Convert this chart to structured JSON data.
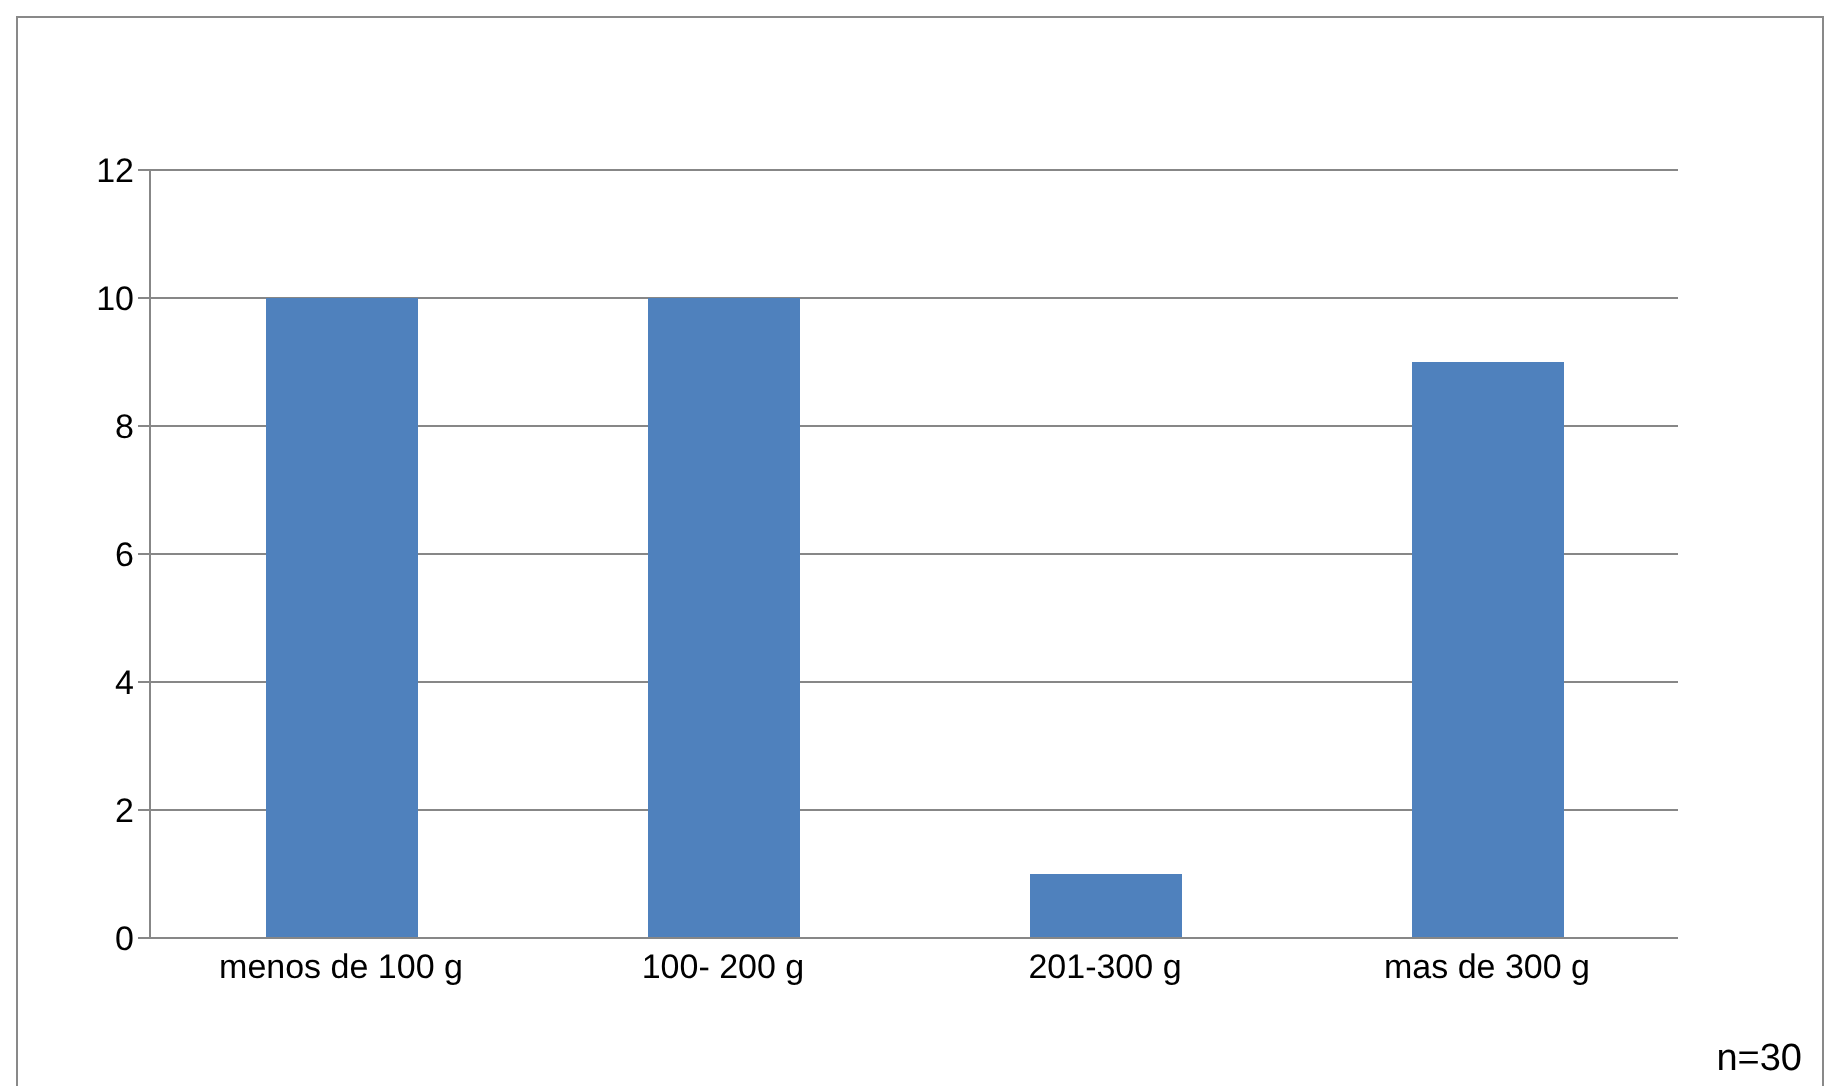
{
  "chart_data": {
    "type": "bar",
    "categories": [
      "menos de 100 g",
      "100- 200 g",
      "201-300 g",
      "mas de 300 g"
    ],
    "values": [
      10,
      10,
      1,
      9
    ],
    "color": "#4f81bd",
    "ylim": [
      0,
      12
    ],
    "yticks": [
      0,
      2,
      4,
      6,
      8,
      10,
      12
    ],
    "grid": "y",
    "annotations": [
      "n=30"
    ]
  }
}
